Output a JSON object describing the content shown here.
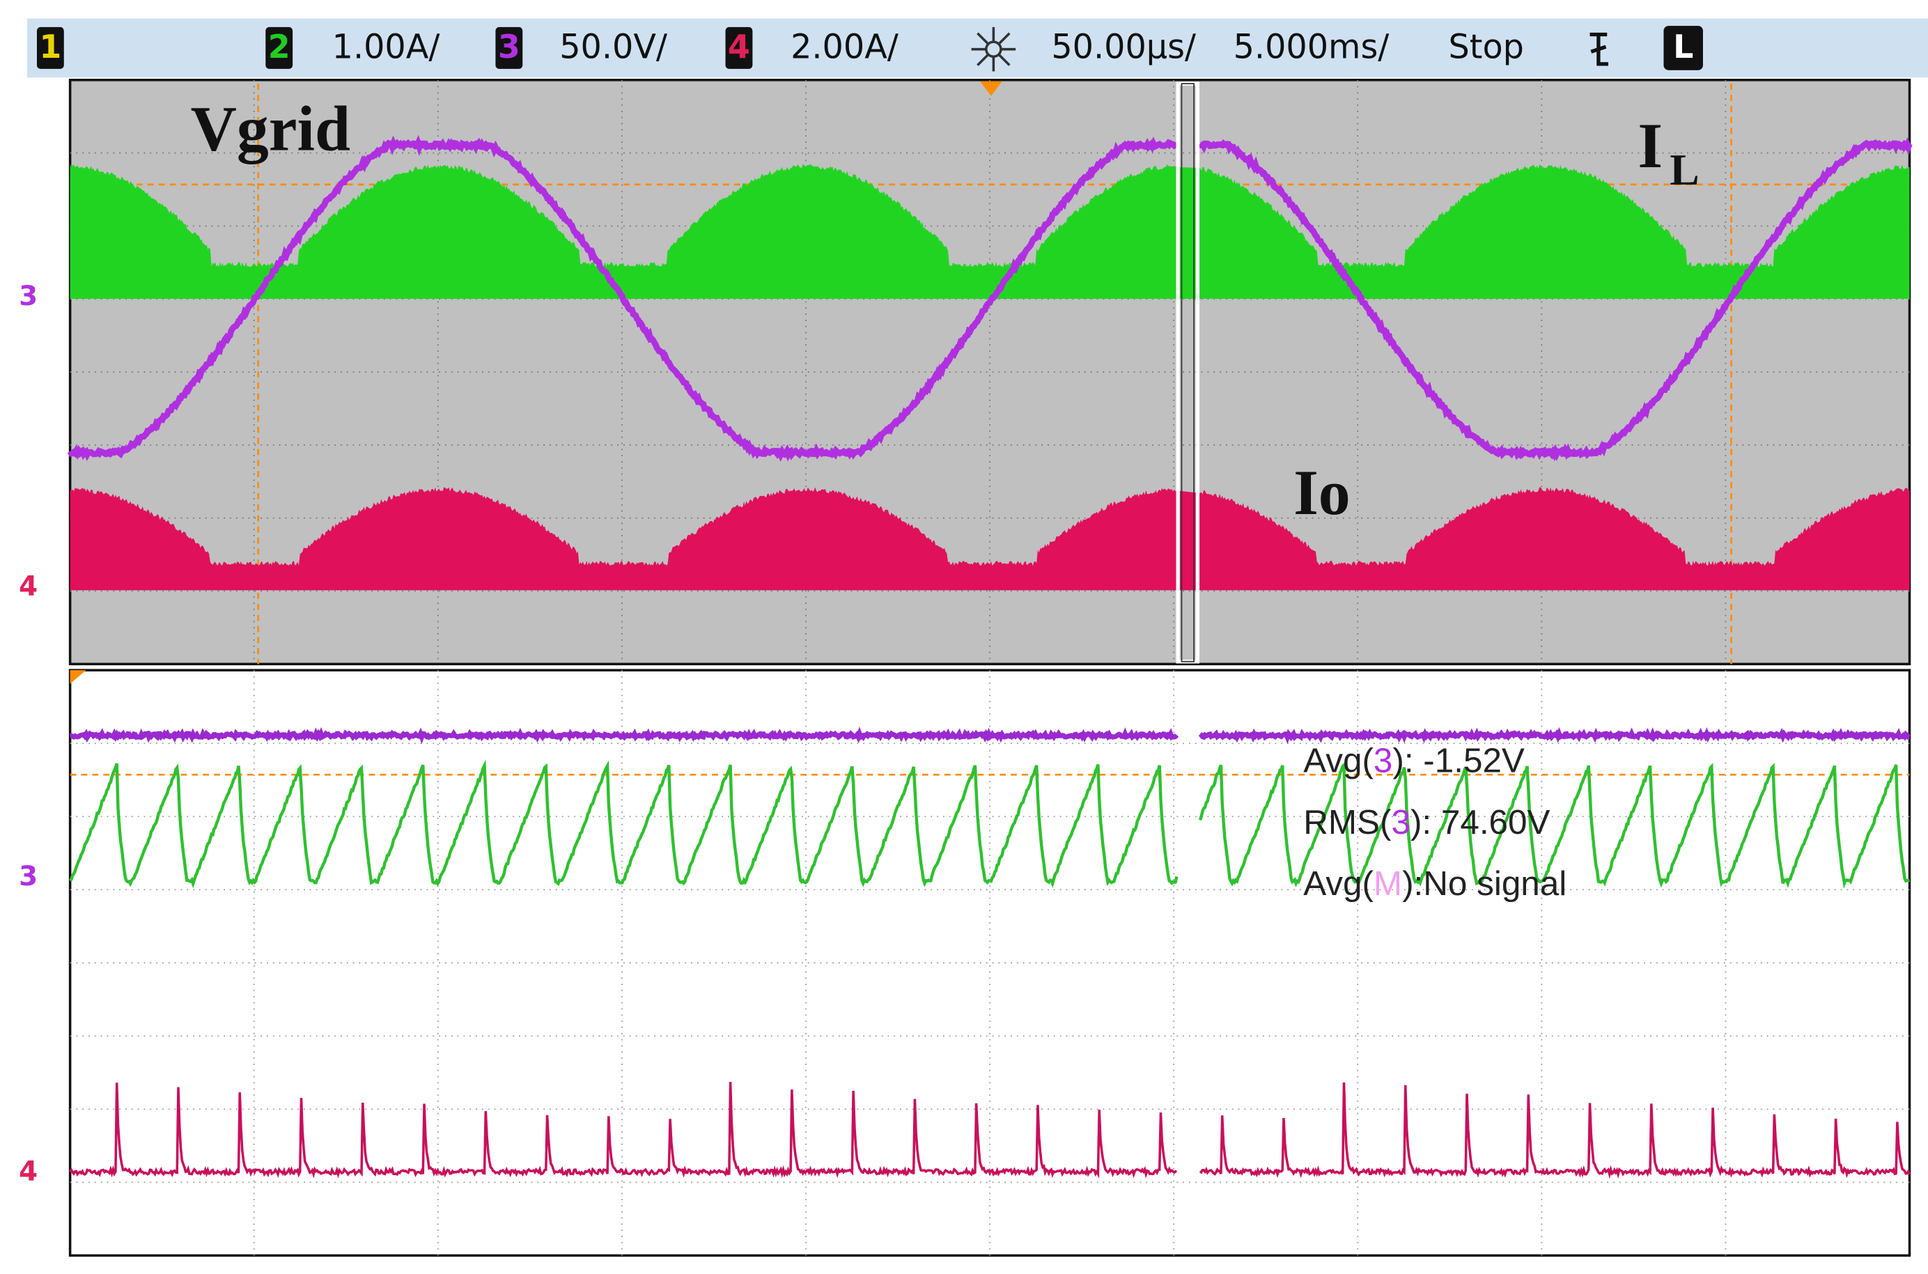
{
  "top_bar": {
    "channel1": "1",
    "channel2": "2",
    "ch2_scale": "1.00A/",
    "channel3": "3",
    "ch3_scale": "50.0V/",
    "channel4": "4",
    "ch4_scale": "2.00A/",
    "time_scale": "50.00µs/",
    "zoom_scale": "5.000ms/",
    "run_state": "Stop",
    "trigger_mode": "L"
  },
  "labels": {
    "vgrid": "Vgrid",
    "il_main": "I",
    "il_sub": "L",
    "io": "Io"
  },
  "channel_markers": {
    "upper_3": "3",
    "upper_4": "4",
    "lower_3": "3",
    "lower_4": "4"
  },
  "measurements": [
    {
      "prefix": "Avg(",
      "channel": "3",
      "suffix": "): -1.52V"
    },
    {
      "prefix": "RMS(",
      "channel": "3",
      "suffix": "): 74.60V"
    },
    {
      "prefix": "Avg(",
      "channel": "M",
      "suffix": "):No signal"
    }
  ]
}
